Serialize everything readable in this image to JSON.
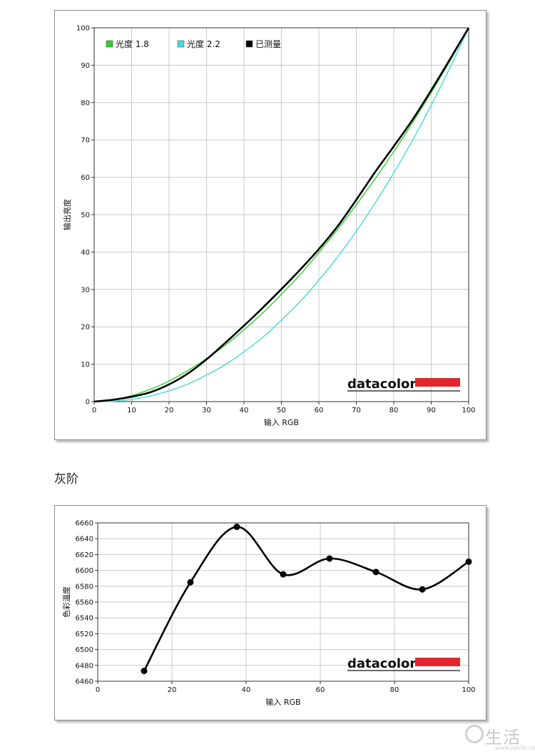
{
  "section_title": "灰阶",
  "watermark": {
    "text": "生活",
    "url": "www.zeilife.net"
  },
  "colors": {
    "green": "#2bd22b",
    "cyan": "#44dcdc",
    "black": "#000000",
    "grid": "#c8c8c8",
    "brand_red": "#e0252c"
  },
  "chart_data": [
    {
      "type": "line",
      "xlabel": "输入 RGB",
      "ylabel": "输出亮度",
      "xlim": [
        0,
        100
      ],
      "ylim": [
        0,
        100
      ],
      "xticks": [
        0,
        10,
        20,
        30,
        40,
        50,
        60,
        70,
        80,
        90,
        100
      ],
      "yticks": [
        0,
        10,
        20,
        30,
        40,
        50,
        60,
        70,
        80,
        90,
        100
      ],
      "grid": true,
      "legend_position": "top-left",
      "brand": "datacolor",
      "series": [
        {
          "name": "光度 1.8",
          "color": "#2bd22b",
          "x": [
            0,
            5,
            10,
            15,
            20,
            25,
            30,
            35,
            40,
            45,
            50,
            55,
            60,
            65,
            70,
            75,
            80,
            85,
            90,
            95,
            100
          ],
          "y": [
            0,
            0.5,
            1.6,
            3.3,
            5.5,
            8.3,
            11.5,
            15.1,
            19.2,
            23.7,
            28.7,
            34.0,
            39.9,
            46.1,
            52.7,
            59.6,
            66.9,
            74.6,
            82.7,
            91.1,
            100
          ]
        },
        {
          "name": "光度 2.2",
          "color": "#44dcdc",
          "x": [
            0,
            5,
            10,
            15,
            20,
            25,
            30,
            35,
            40,
            45,
            50,
            55,
            60,
            65,
            70,
            75,
            80,
            85,
            90,
            95,
            100
          ],
          "y": [
            0,
            0.1,
            0.6,
            1.5,
            2.9,
            4.7,
            7.1,
            9.9,
            13.3,
            17.2,
            21.8,
            26.8,
            32.5,
            38.7,
            45.6,
            53.1,
            61.2,
            69.9,
            79.3,
            89.3,
            100
          ]
        },
        {
          "name": "已测量",
          "color": "#000000",
          "x": [
            0,
            5,
            10,
            15,
            20,
            25,
            30,
            35,
            40,
            45,
            50,
            55,
            60,
            65,
            70,
            75,
            80,
            85,
            90,
            95,
            100
          ],
          "y": [
            0,
            0.5,
            1.3,
            2.5,
            4.6,
            7.5,
            11.3,
            15.7,
            20.3,
            25.1,
            30.1,
            35.3,
            40.8,
            46.9,
            54.0,
            61.4,
            68.3,
            75.4,
            83.3,
            91.6,
            100
          ]
        }
      ]
    },
    {
      "type": "line",
      "xlabel": "输入 RGB",
      "ylabel": "色彩温度",
      "xlim": [
        0,
        100
      ],
      "ylim": [
        6460,
        6660
      ],
      "xticks": [
        0,
        20,
        40,
        60,
        80,
        100
      ],
      "yticks": [
        6460,
        6480,
        6500,
        6520,
        6540,
        6560,
        6580,
        6600,
        6620,
        6640,
        6660
      ],
      "grid": true,
      "brand": "datacolor",
      "series": [
        {
          "color": "#000000",
          "x": [
            12.5,
            25,
            37.5,
            50,
            62.5,
            75,
            87.5,
            100
          ],
          "y": [
            6473,
            6585,
            6655,
            6595,
            6615,
            6598,
            6576,
            6611
          ]
        }
      ]
    }
  ]
}
